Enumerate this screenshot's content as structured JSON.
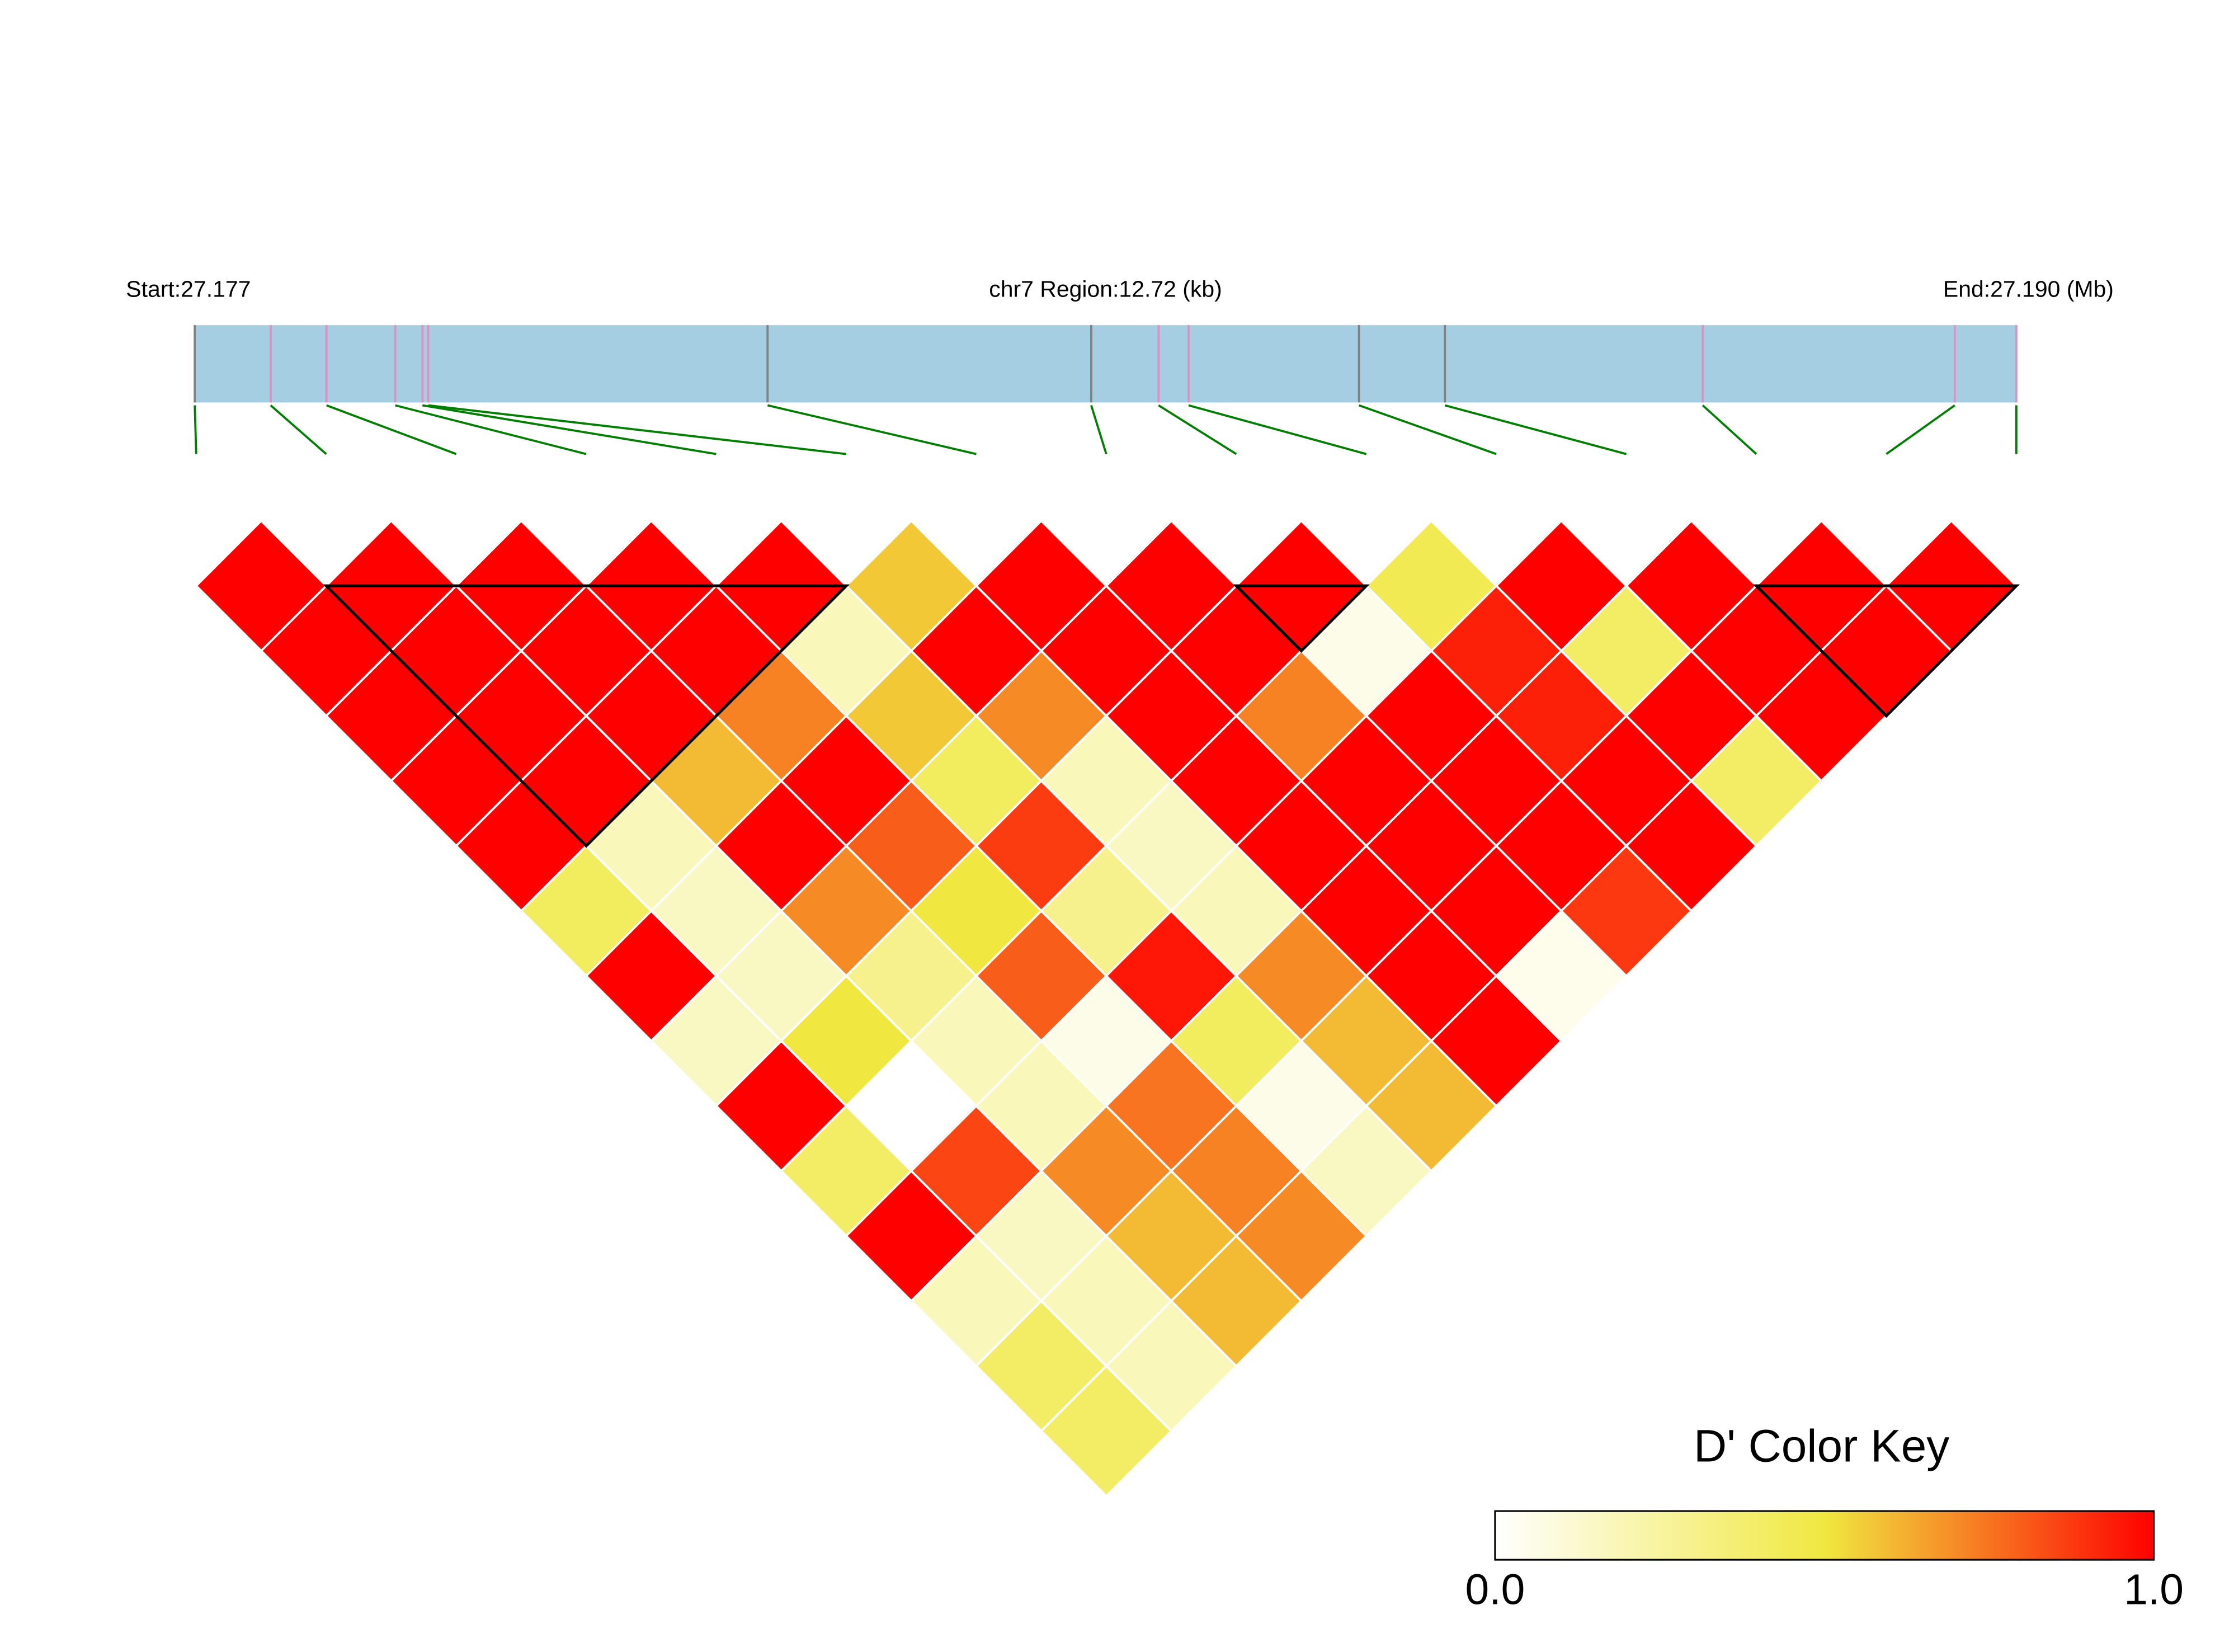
{
  "chart_data": {
    "type": "ld_heatmap",
    "region_start_label": "Start:27.177",
    "region_label": "chr7 Region:12.72 (kb)",
    "region_end_label": "End:27.190 (Mb)",
    "xlim": [
      0,
      12.72
    ],
    "snp_positions_kb": [
      0,
      0.53,
      0.92,
      1.4,
      1.59,
      1.63,
      4.0,
      6.26,
      6.73,
      6.94,
      8.13,
      8.73,
      10.53,
      12.29,
      12.72
    ],
    "marker_colors": [
      "#808080",
      "#e090c0",
      "#e090c0",
      "#e090c0",
      "#e090c0",
      "#e090c0",
      "#808080",
      "#808080",
      "#e090c0",
      "#e090c0",
      "#808080",
      "#808080",
      "#e090c0",
      "#e090c0",
      "#e090c0"
    ],
    "bar_color": "#a6cee3",
    "connector_color": "#008000",
    "values": [
      [
        1,
        1,
        1,
        1,
        1,
        0.42,
        1,
        0.16,
        1,
        0.4,
        1,
        0.18,
        0.4,
        0.4
      ],
      [
        1,
        1,
        1,
        1,
        0.18,
        0.16,
        0.16,
        0.5,
        0,
        0.85,
        0.16,
        0.18,
        0.18
      ],
      [
        1,
        1,
        1,
        0.6,
        1,
        0.7,
        0.3,
        0.18,
        0.18,
        0.7,
        0.6,
        0.6
      ],
      [
        1,
        1,
        0.72,
        1,
        0.8,
        0.5,
        0.8,
        0.06,
        0.75,
        0.72,
        0.7
      ],
      [
        1,
        0.18,
        0.57,
        0.42,
        0.87,
        0.3,
        0.95,
        0.42,
        0.06,
        0.16
      ],
      [
        0.57,
        1,
        0.7,
        0.18,
        0.16,
        0.18,
        0.7,
        0.6,
        0.6
      ],
      [
        1,
        1,
        1,
        1,
        1,
        1,
        1,
        1
      ],
      [
        1,
        1,
        0.72,
        1,
        1,
        1,
        0.05
      ],
      [
        1,
        0.06,
        1,
        1,
        1,
        0.88
      ],
      [
        0.45,
        0.93,
        0.93,
        1,
        1
      ],
      [
        1,
        0.4,
        1,
        0.4
      ],
      [
        1,
        1,
        1
      ],
      [
        1,
        1
      ],
      [
        1
      ]
    ],
    "blocks": [
      [
        1,
        5
      ],
      [
        8,
        9
      ],
      [
        12,
        14
      ]
    ],
    "colorbar": {
      "title": "D' Color Key",
      "lim": [
        0,
        1
      ],
      "ticks": [
        {
          "value": 0,
          "label": "0.0"
        },
        {
          "value": 1,
          "label": "1.0"
        }
      ],
      "colors": [
        "#ffffff",
        "#f0e840",
        "#ff0000"
      ]
    }
  }
}
